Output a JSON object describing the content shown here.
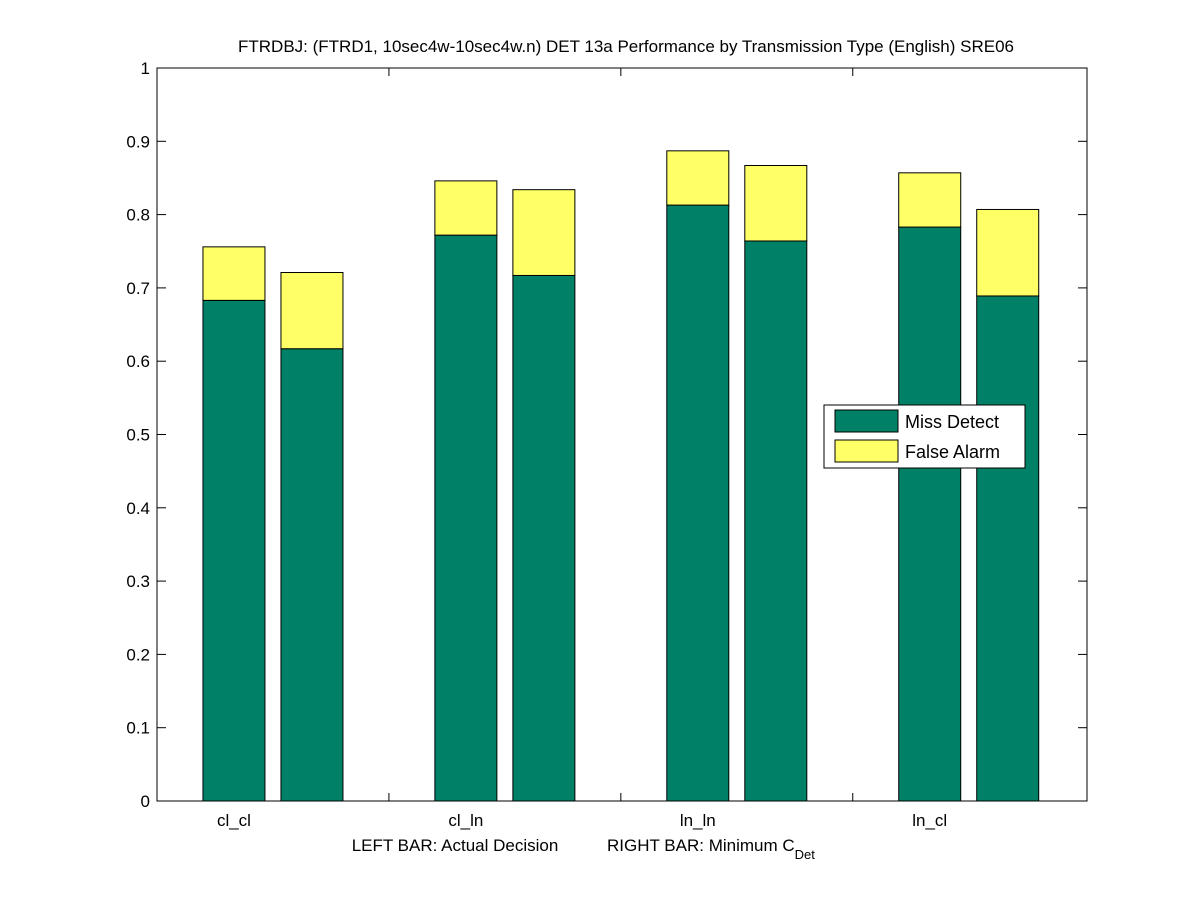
{
  "chart_data": {
    "type": "bar",
    "stacked": true,
    "title": "FTRDBJ: (FTRD1, 10sec4w-10sec4w.n) DET 13a Performance by Transmission Type (English) SRE06",
    "categories": [
      "cl_cl",
      "cl_ln",
      "ln_ln",
      "ln_cl"
    ],
    "xlabel_left": "LEFT BAR: Actual Decision",
    "xlabel_right_prefix": "RIGHT BAR: Minimum C",
    "xlabel_right_subscript": "Det",
    "ylim": [
      0,
      1
    ],
    "yticks": [
      0,
      0.1,
      0.2,
      0.3,
      0.4,
      0.5,
      0.6,
      0.7,
      0.8,
      0.9,
      1
    ],
    "ytick_labels": [
      "0",
      "0.1",
      "0.2",
      "0.3",
      "0.4",
      "0.5",
      "0.6",
      "0.7",
      "0.8",
      "0.9",
      "1"
    ],
    "legend_position": "right",
    "series": [
      {
        "name": "Miss Detect",
        "color": "#008066"
      },
      {
        "name": "False Alarm",
        "color": "#ffff66"
      }
    ],
    "bars": [
      {
        "category": "cl_cl",
        "bar": "Actual Decision",
        "miss": 0.683,
        "fa": 0.073
      },
      {
        "category": "cl_cl",
        "bar": "Minimum CDet",
        "miss": 0.617,
        "fa": 0.104
      },
      {
        "category": "cl_ln",
        "bar": "Actual Decision",
        "miss": 0.772,
        "fa": 0.074
      },
      {
        "category": "cl_ln",
        "bar": "Minimum CDet",
        "miss": 0.717,
        "fa": 0.117
      },
      {
        "category": "ln_ln",
        "bar": "Actual Decision",
        "miss": 0.813,
        "fa": 0.074
      },
      {
        "category": "ln_ln",
        "bar": "Minimum CDet",
        "miss": 0.764,
        "fa": 0.103
      },
      {
        "category": "ln_cl",
        "bar": "Actual Decision",
        "miss": 0.783,
        "fa": 0.074
      },
      {
        "category": "ln_cl",
        "bar": "Minimum CDet",
        "miss": 0.689,
        "fa": 0.118
      }
    ]
  }
}
